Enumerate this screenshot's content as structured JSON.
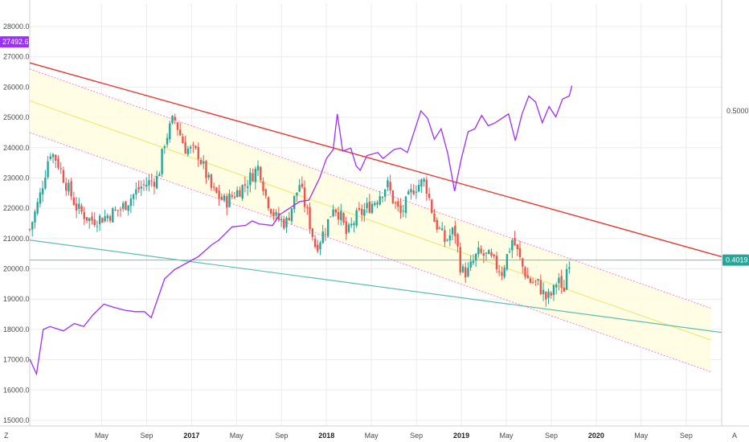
{
  "colors": {
    "background": "#ffffff",
    "grid": "#ececec",
    "up_candle": "#26a69a",
    "down_candle": "#ef5350",
    "ratio_line": "#9b30ff",
    "channel_fill": "#fffde0",
    "channel_border": "#ff7be6",
    "channel_mid": "#f2e56a",
    "resistance_line": "#e53935",
    "support_line": "#5bbfb0",
    "price_line": "#60c7b7",
    "last_price_badge": "#9b30ff",
    "ratio_badge": "#26a69a"
  },
  "chart_data": {
    "type": "candlestick",
    "grid": true,
    "left_axis": {
      "ticks": [
        "15000.0",
        "16000.0",
        "17000.0",
        "18000.0",
        "19000.0",
        "20000.0",
        "21000.0",
        "22000.0",
        "23000.0",
        "24000.0",
        "25000.0",
        "26000.0",
        "27000.0",
        "28000.0"
      ],
      "ylim": [
        15000,
        28000
      ],
      "last_price_label": "27492.6",
      "last_price": 27492.6
    },
    "right_axis": {
      "ticks": [
        "0.5000"
      ],
      "current_label": "0.4019",
      "current_value": 0.4019,
      "ylim": [
        0.3,
        0.54
      ]
    },
    "x_axis": {
      "ticks": [
        {
          "label": "May",
          "t": 0.333,
          "bold": false
        },
        {
          "label": "Sep",
          "t": 0.667,
          "bold": false
        },
        {
          "label": "2017",
          "t": 1.0,
          "bold": true
        },
        {
          "label": "May",
          "t": 1.333,
          "bold": false
        },
        {
          "label": "Sep",
          "t": 1.667,
          "bold": false
        },
        {
          "label": "2018",
          "t": 2.0,
          "bold": true
        },
        {
          "label": "May",
          "t": 2.333,
          "bold": false
        },
        {
          "label": "Sep",
          "t": 2.667,
          "bold": false
        },
        {
          "label": "2019",
          "t": 3.0,
          "bold": true
        },
        {
          "label": "May",
          "t": 3.333,
          "bold": false
        },
        {
          "label": "Sep",
          "t": 3.667,
          "bold": false
        },
        {
          "label": "2020",
          "t": 4.0,
          "bold": true
        },
        {
          "label": "May",
          "t": 4.333,
          "bold": false
        },
        {
          "label": "Sep",
          "t": 4.667,
          "bold": false
        }
      ],
      "range_t": [
        -0.2,
        4.93
      ]
    },
    "price_anchors": [
      [
        -0.2,
        21300
      ],
      [
        -0.13,
        22300
      ],
      [
        -0.05,
        23900
      ],
      [
        0.0,
        23600
      ],
      [
        0.07,
        22800
      ],
      [
        0.15,
        22000
      ],
      [
        0.25,
        21600
      ],
      [
        0.35,
        21700
      ],
      [
        0.48,
        22000
      ],
      [
        0.62,
        22700
      ],
      [
        0.75,
        23000
      ],
      [
        0.8,
        24200
      ],
      [
        0.87,
        25000
      ],
      [
        0.95,
        24000
      ],
      [
        1.05,
        23800
      ],
      [
        1.15,
        22600
      ],
      [
        1.25,
        22200
      ],
      [
        1.4,
        22800
      ],
      [
        1.5,
        23400
      ],
      [
        1.55,
        22400
      ],
      [
        1.62,
        21700
      ],
      [
        1.7,
        21500
      ],
      [
        1.8,
        22800
      ],
      [
        1.87,
        21600
      ],
      [
        1.92,
        20700
      ],
      [
        2.0,
        21400
      ],
      [
        2.05,
        22100
      ],
      [
        2.1,
        21800
      ],
      [
        2.15,
        21100
      ],
      [
        2.22,
        21700
      ],
      [
        2.35,
        22200
      ],
      [
        2.45,
        22800
      ],
      [
        2.5,
        22200
      ],
      [
        2.55,
        21800
      ],
      [
        2.65,
        22700
      ],
      [
        2.73,
        22900
      ],
      [
        2.8,
        21600
      ],
      [
        2.88,
        20900
      ],
      [
        2.95,
        21300
      ],
      [
        3.0,
        19900
      ],
      [
        3.05,
        19900
      ],
      [
        3.12,
        20500
      ],
      [
        3.2,
        20400
      ],
      [
        3.3,
        19900
      ],
      [
        3.38,
        21000
      ],
      [
        3.45,
        20100
      ],
      [
        3.5,
        19600
      ],
      [
        3.57,
        19500
      ],
      [
        3.63,
        19000
      ],
      [
        3.68,
        19200
      ],
      [
        3.72,
        19800
      ],
      [
        3.75,
        19000
      ],
      [
        3.78,
        20000
      ],
      [
        3.8,
        20300
      ]
    ],
    "ratio_line": [
      [
        -0.2,
        0.333
      ],
      [
        -0.15,
        0.323
      ],
      [
        -0.1,
        0.353
      ],
      [
        -0.05,
        0.355
      ],
      [
        0.05,
        0.352
      ],
      [
        0.13,
        0.357
      ],
      [
        0.2,
        0.355
      ],
      [
        0.27,
        0.363
      ],
      [
        0.35,
        0.37
      ],
      [
        0.42,
        0.368
      ],
      [
        0.5,
        0.366
      ],
      [
        0.58,
        0.365
      ],
      [
        0.65,
        0.365
      ],
      [
        0.7,
        0.361
      ],
      [
        0.8,
        0.387
      ],
      [
        0.87,
        0.393
      ],
      [
        0.95,
        0.397
      ],
      [
        1.05,
        0.402
      ],
      [
        1.15,
        0.41
      ],
      [
        1.2,
        0.413
      ],
      [
        1.3,
        0.422
      ],
      [
        1.4,
        0.423
      ],
      [
        1.45,
        0.426
      ],
      [
        1.5,
        0.424
      ],
      [
        1.6,
        0.423
      ],
      [
        1.65,
        0.43
      ],
      [
        1.75,
        0.436
      ],
      [
        1.8,
        0.439
      ],
      [
        1.87,
        0.44
      ],
      [
        1.95,
        0.455
      ],
      [
        2.0,
        0.468
      ],
      [
        2.05,
        0.474
      ],
      [
        2.08,
        0.498
      ],
      [
        2.12,
        0.473
      ],
      [
        2.18,
        0.475
      ],
      [
        2.22,
        0.463
      ],
      [
        2.25,
        0.46
      ],
      [
        2.3,
        0.47
      ],
      [
        2.38,
        0.472
      ],
      [
        2.42,
        0.468
      ],
      [
        2.5,
        0.474
      ],
      [
        2.55,
        0.475
      ],
      [
        2.6,
        0.472
      ],
      [
        2.65,
        0.486
      ],
      [
        2.7,
        0.5
      ],
      [
        2.75,
        0.495
      ],
      [
        2.8,
        0.481
      ],
      [
        2.85,
        0.488
      ],
      [
        2.9,
        0.471
      ],
      [
        2.95,
        0.446
      ],
      [
        3.0,
        0.468
      ],
      [
        3.05,
        0.486
      ],
      [
        3.1,
        0.488
      ],
      [
        3.15,
        0.497
      ],
      [
        3.2,
        0.49
      ],
      [
        3.25,
        0.492
      ],
      [
        3.3,
        0.495
      ],
      [
        3.35,
        0.498
      ],
      [
        3.4,
        0.48
      ],
      [
        3.45,
        0.498
      ],
      [
        3.5,
        0.51
      ],
      [
        3.55,
        0.506
      ],
      [
        3.6,
        0.492
      ],
      [
        3.65,
        0.503
      ],
      [
        3.7,
        0.496
      ],
      [
        3.75,
        0.508
      ],
      [
        3.8,
        0.51
      ],
      [
        3.82,
        0.517
      ]
    ],
    "channel": {
      "upper": [
        [
          -0.2,
          26600
        ],
        [
          4.85,
          18700
        ]
      ],
      "lower": [
        [
          -0.2,
          24500
        ],
        [
          4.85,
          16600
        ]
      ],
      "mid": [
        [
          -0.2,
          25550
        ],
        [
          4.85,
          17650
        ]
      ]
    },
    "resistance_line": [
      [
        -0.2,
        26800
      ],
      [
        4.93,
        20400
      ]
    ],
    "support_line": [
      [
        -0.2,
        20950
      ],
      [
        4.93,
        17900
      ]
    ],
    "price_line_level": 20290
  },
  "footer": {
    "timezone_label": "Z",
    "auto_label": "A"
  }
}
